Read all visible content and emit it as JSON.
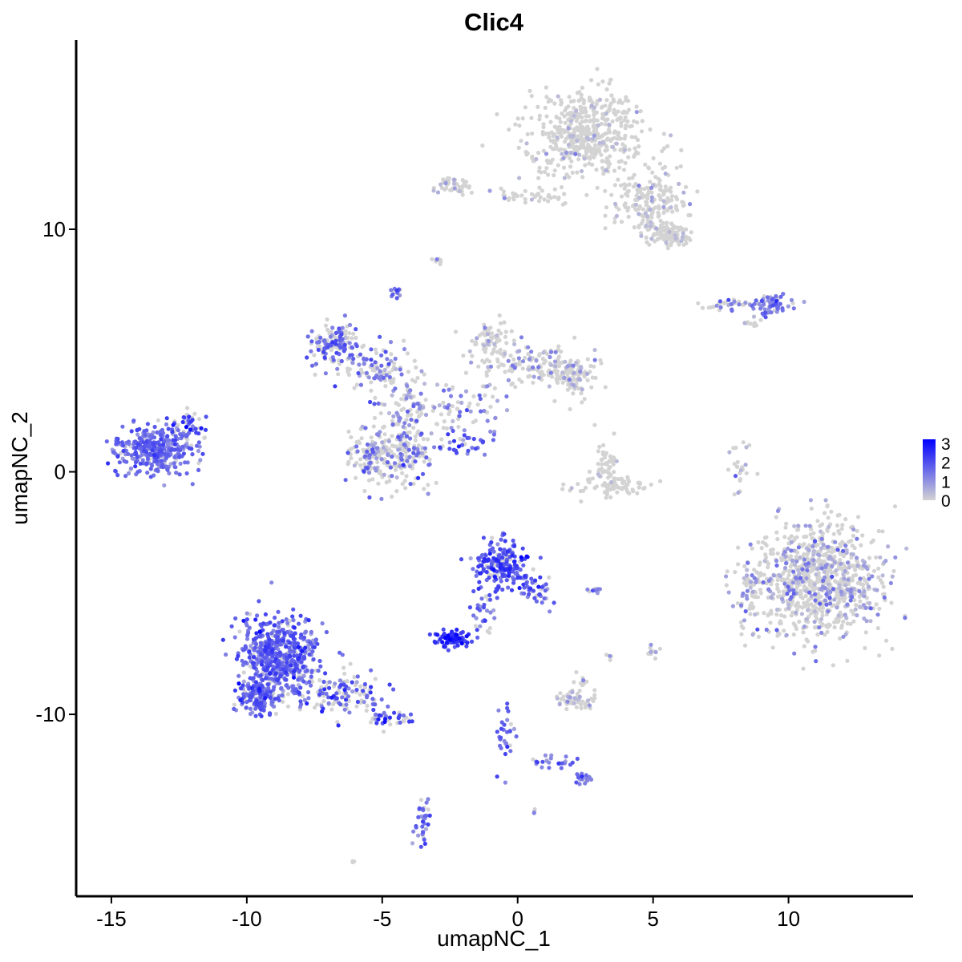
{
  "chart_data": {
    "type": "scatter",
    "title": "Clic4",
    "xlabel": "umapNC_1",
    "ylabel": "umapNC_2",
    "xlim": [
      -16.3,
      14.6
    ],
    "ylim": [
      -17.5,
      17.8
    ],
    "xticks": [
      -15,
      -10,
      -5,
      0,
      5,
      10
    ],
    "xtick_labels": [
      "-15",
      "-10",
      "-5",
      "0",
      "5",
      "10"
    ],
    "yticks": [
      -10,
      0,
      10
    ],
    "ytick_labels": [
      "-10",
      "0",
      "10"
    ],
    "grid": false,
    "legend": {
      "position": "right",
      "type": "colorbar",
      "min": 0,
      "max": 3.2,
      "ticks": [
        0,
        1,
        2,
        3
      ],
      "tick_labels": [
        "0",
        "1",
        "2",
        "3"
      ],
      "low_color": "#d3d3d3",
      "high_color": "#0000ff"
    },
    "clusters": [
      {
        "center": [
          2.5,
          14.0
        ],
        "spread": [
          1.4,
          1.2
        ],
        "count": 520,
        "mean_expr": 0.15
      },
      {
        "center": [
          4.8,
          11.2
        ],
        "spread": [
          1.0,
          0.8
        ],
        "count": 180,
        "mean_expr": 0.25
      },
      {
        "center": [
          5.6,
          9.8
        ],
        "spread": [
          0.5,
          0.35
        ],
        "count": 110,
        "mean_expr": 0.15
      },
      {
        "center": [
          -2.3,
          11.8
        ],
        "spread": [
          0.5,
          0.25
        ],
        "count": 50,
        "mean_expr": 0.35
      },
      {
        "center": [
          0.5,
          11.4
        ],
        "spread": [
          1.0,
          0.25
        ],
        "count": 40,
        "mean_expr": 0.2
      },
      {
        "center": [
          -4.5,
          7.4
        ],
        "spread": [
          0.15,
          0.15
        ],
        "count": 12,
        "mean_expr": 1.4
      },
      {
        "center": [
          -2.9,
          8.7
        ],
        "spread": [
          0.15,
          0.1
        ],
        "count": 8,
        "mean_expr": 0.5
      },
      {
        "center": [
          8.0,
          6.9
        ],
        "spread": [
          0.9,
          0.15
        ],
        "count": 40,
        "mean_expr": 0.8
      },
      {
        "center": [
          9.4,
          6.9
        ],
        "spread": [
          0.4,
          0.3
        ],
        "count": 55,
        "mean_expr": 1.4
      },
      {
        "center": [
          8.6,
          6.1
        ],
        "spread": [
          0.3,
          0.15
        ],
        "count": 10,
        "mean_expr": 0.4
      },
      {
        "center": [
          -13.4,
          0.9
        ],
        "spread": [
          0.9,
          0.65
        ],
        "count": 360,
        "mean_expr": 1.45
      },
      {
        "center": [
          -12.1,
          1.9
        ],
        "spread": [
          0.4,
          0.4
        ],
        "count": 40,
        "mean_expr": 1.2
      },
      {
        "center": [
          -6.8,
          5.3
        ],
        "spread": [
          0.7,
          0.55
        ],
        "count": 140,
        "mean_expr": 1.0
      },
      {
        "center": [
          -5.2,
          4.2
        ],
        "spread": [
          1.0,
          0.55
        ],
        "count": 100,
        "mean_expr": 0.8
      },
      {
        "center": [
          -4.0,
          2.6
        ],
        "spread": [
          0.7,
          0.8
        ],
        "count": 90,
        "mean_expr": 0.7
      },
      {
        "center": [
          -5.4,
          0.6
        ],
        "spread": [
          0.55,
          0.8
        ],
        "count": 150,
        "mean_expr": 0.7
      },
      {
        "center": [
          -4.1,
          0.8
        ],
        "spread": [
          0.6,
          0.8
        ],
        "count": 130,
        "mean_expr": 0.75
      },
      {
        "center": [
          -2.0,
          2.5
        ],
        "spread": [
          1.0,
          0.9
        ],
        "count": 70,
        "mean_expr": 0.7
      },
      {
        "center": [
          -1.8,
          1.1
        ],
        "spread": [
          0.6,
          0.3
        ],
        "count": 25,
        "mean_expr": 1.8
      },
      {
        "center": [
          -1.0,
          5.3
        ],
        "spread": [
          0.5,
          0.6
        ],
        "count": 70,
        "mean_expr": 0.3
      },
      {
        "center": [
          0.6,
          4.5
        ],
        "spread": [
          1.0,
          0.6
        ],
        "count": 120,
        "mean_expr": 0.45
      },
      {
        "center": [
          2.1,
          4.0
        ],
        "spread": [
          0.6,
          0.6
        ],
        "count": 100,
        "mean_expr": 0.35
      },
      {
        "center": [
          3.3,
          0.4
        ],
        "spread": [
          0.4,
          0.6
        ],
        "count": 45,
        "mean_expr": 0.1
      },
      {
        "center": [
          3.4,
          -0.6
        ],
        "spread": [
          1.0,
          0.3
        ],
        "count": 80,
        "mean_expr": 0.15
      },
      {
        "center": [
          8.2,
          0.2
        ],
        "spread": [
          0.3,
          0.7
        ],
        "count": 25,
        "mean_expr": 0.5
      },
      {
        "center": [
          11.2,
          -4.4
        ],
        "spread": [
          1.5,
          1.55
        ],
        "count": 900,
        "mean_expr": 0.45
      },
      {
        "center": [
          8.6,
          -5.0
        ],
        "spread": [
          0.4,
          1.2
        ],
        "count": 60,
        "mean_expr": 0.6
      },
      {
        "center": [
          -0.6,
          -3.9
        ],
        "spread": [
          0.65,
          0.65
        ],
        "count": 200,
        "mean_expr": 1.95
      },
      {
        "center": [
          0.7,
          -4.9
        ],
        "spread": [
          0.4,
          0.5
        ],
        "count": 40,
        "mean_expr": 1.6
      },
      {
        "center": [
          -1.2,
          -5.9
        ],
        "spread": [
          0.35,
          0.6
        ],
        "count": 25,
        "mean_expr": 1.5
      },
      {
        "center": [
          -2.4,
          -6.9
        ],
        "spread": [
          0.45,
          0.22
        ],
        "count": 90,
        "mean_expr": 2.4
      },
      {
        "center": [
          2.8,
          -4.9
        ],
        "spread": [
          0.25,
          0.1
        ],
        "count": 10,
        "mean_expr": 1.3
      },
      {
        "center": [
          -8.8,
          -7.4
        ],
        "spread": [
          0.9,
          1.0
        ],
        "count": 520,
        "mean_expr": 1.65
      },
      {
        "center": [
          -9.6,
          -9.3
        ],
        "spread": [
          0.5,
          0.5
        ],
        "count": 160,
        "mean_expr": 1.55
      },
      {
        "center": [
          -6.5,
          -9.1
        ],
        "spread": [
          1.2,
          0.6
        ],
        "count": 140,
        "mean_expr": 1.0
      },
      {
        "center": [
          -4.6,
          -10.1
        ],
        "spread": [
          0.5,
          0.25
        ],
        "count": 40,
        "mean_expr": 1.2
      },
      {
        "center": [
          2.1,
          -9.4
        ],
        "spread": [
          0.5,
          0.25
        ],
        "count": 55,
        "mean_expr": 0.35
      },
      {
        "center": [
          2.4,
          -8.6
        ],
        "spread": [
          0.2,
          0.2
        ],
        "count": 10,
        "mean_expr": 0.6
      },
      {
        "center": [
          -0.4,
          -10.9
        ],
        "spread": [
          0.3,
          0.9
        ],
        "count": 30,
        "mean_expr": 1.5
      },
      {
        "center": [
          1.2,
          -12.0
        ],
        "spread": [
          0.7,
          0.2
        ],
        "count": 25,
        "mean_expr": 1.4
      },
      {
        "center": [
          2.4,
          -12.6
        ],
        "spread": [
          0.2,
          0.15
        ],
        "count": 15,
        "mean_expr": 1.4
      },
      {
        "center": [
          -3.5,
          -14.5
        ],
        "spread": [
          0.2,
          0.55
        ],
        "count": 35,
        "mean_expr": 1.4
      },
      {
        "center": [
          5.0,
          -7.3
        ],
        "spread": [
          0.15,
          0.25
        ],
        "count": 10,
        "mean_expr": 0.5
      },
      {
        "center": [
          3.4,
          -7.6
        ],
        "spread": [
          0.1,
          0.15
        ],
        "count": 4,
        "mean_expr": 0.5
      },
      {
        "center": [
          0.6,
          -14.0
        ],
        "spread": [
          0.1,
          0.1
        ],
        "count": 3,
        "mean_expr": 1.0
      },
      {
        "center": [
          -6.1,
          -16.0
        ],
        "spread": [
          0.1,
          0.1
        ],
        "count": 3,
        "mean_expr": 0.2
      }
    ]
  }
}
